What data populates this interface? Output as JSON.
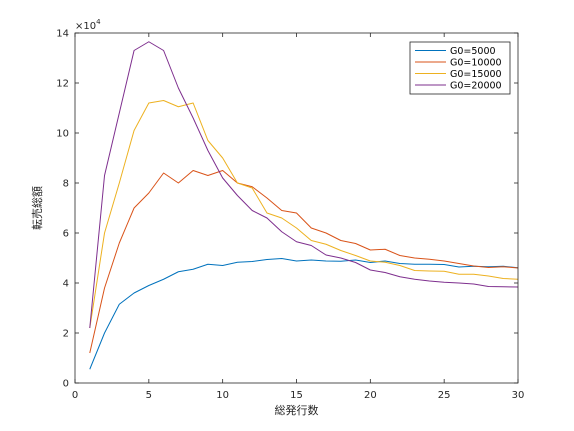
{
  "chart_data": {
    "type": "line",
    "title": "",
    "xlabel": "総発行数",
    "ylabel": "転売総額",
    "xlim": [
      0,
      30
    ],
    "ylim": [
      0,
      140000
    ],
    "y_exponent_label": "×10",
    "y_exponent_power": "4",
    "y_scale_factor": 10000,
    "xticks": [
      0,
      5,
      10,
      15,
      20,
      25,
      30
    ],
    "yticks": [
      0,
      20000,
      40000,
      60000,
      80000,
      100000,
      120000,
      140000
    ],
    "ytick_labels": [
      "0",
      "2",
      "4",
      "6",
      "8",
      "10",
      "12",
      "14"
    ],
    "grid": false,
    "legend_position": "top-right",
    "x": [
      1,
      2,
      3,
      4,
      5,
      6,
      7,
      8,
      9,
      10,
      11,
      12,
      13,
      14,
      15,
      16,
      17,
      18,
      19,
      20,
      21,
      22,
      23,
      24,
      25,
      26,
      27,
      28,
      29,
      30
    ],
    "series": [
      {
        "name": "G0=5000",
        "color": "#0072BD",
        "values": [
          5500,
          20000,
          31500,
          36000,
          39000,
          41500,
          44500,
          45500,
          47500,
          47000,
          48300,
          48600,
          49400,
          49800,
          48800,
          49200,
          48800,
          48700,
          49200,
          48200,
          48800,
          47800,
          47500,
          47500,
          47400,
          46400,
          46700,
          46500,
          46700,
          46100
        ]
      },
      {
        "name": "G0=10000",
        "color": "#D95319",
        "values": [
          12000,
          38000,
          56000,
          70000,
          76000,
          84000,
          80000,
          85000,
          83000,
          85000,
          80000,
          78500,
          74000,
          69000,
          68000,
          62000,
          60000,
          57000,
          55800,
          53200,
          53500,
          51000,
          50000,
          49500,
          48800,
          47800,
          46800,
          46200,
          46500,
          46000
        ]
      },
      {
        "name": "G0=15000",
        "color": "#EDB120",
        "values": [
          22000,
          60000,
          80000,
          101000,
          112000,
          113000,
          110500,
          112000,
          97000,
          90000,
          80000,
          78000,
          68000,
          66000,
          62000,
          57000,
          55500,
          53000,
          51000,
          48800,
          48300,
          47000,
          45000,
          44800,
          44700,
          43500,
          43500,
          42800,
          41800,
          41500
        ]
      },
      {
        "name": "G0=20000",
        "color": "#7E2F8E",
        "values": [
          22000,
          83000,
          108000,
          133000,
          136500,
          133000,
          118000,
          106000,
          93000,
          82000,
          75000,
          69000,
          66000,
          60500,
          56500,
          55000,
          51200,
          50000,
          48200,
          45200,
          44200,
          42500,
          41500,
          40800,
          40300,
          40000,
          39600,
          38600,
          38500,
          38400
        ]
      }
    ]
  }
}
